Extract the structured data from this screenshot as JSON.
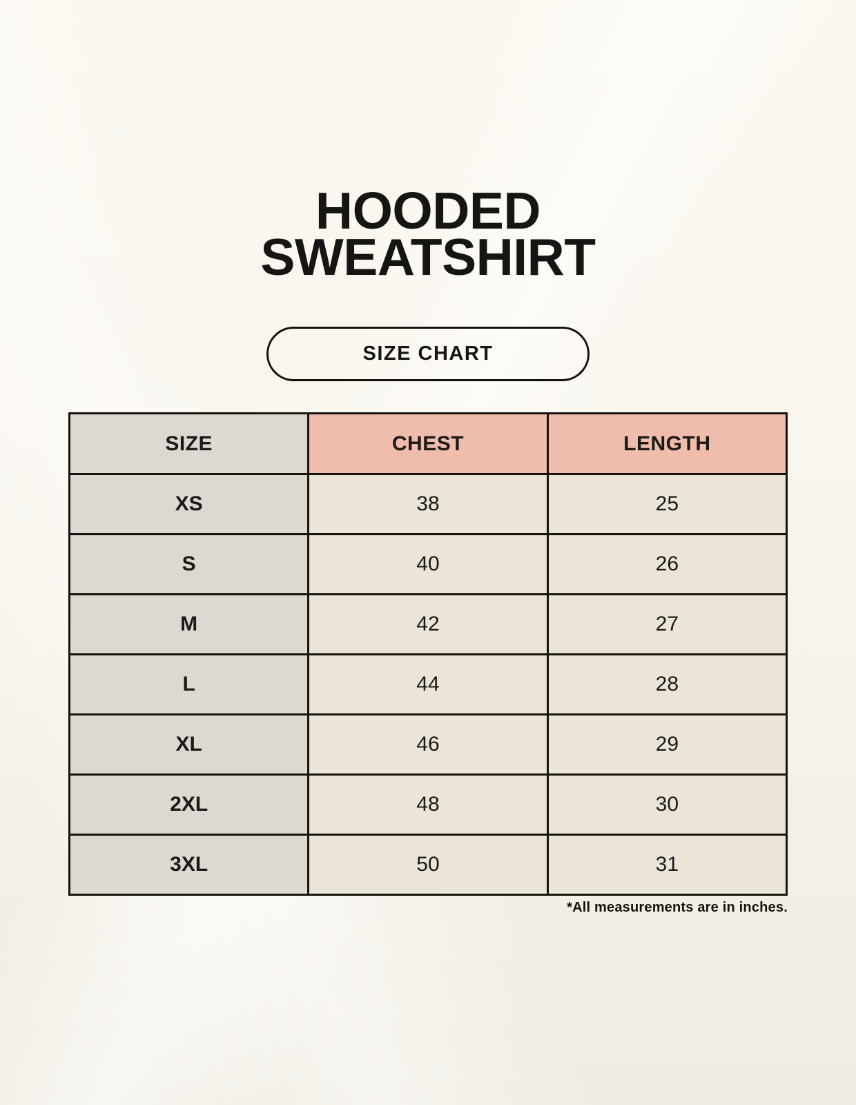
{
  "poster": {
    "title_line1": "HOODED",
    "title_line2": "SWEATSHIRT",
    "badge_label": "SIZE CHART",
    "footnote": "*All measurements are in inches."
  },
  "colors": {
    "background": "#f9f5ed",
    "header_fill": "#f0bcab",
    "size_col_fill": "#ded8d3",
    "cell_fill": "#eae4d9",
    "border": "#17130e",
    "text": "#1b1815"
  },
  "chart_data": {
    "type": "table",
    "title": "Hooded Sweatshirt Size Chart",
    "columns": [
      "SIZE",
      "CHEST",
      "LENGTH"
    ],
    "rows": [
      [
        "XS",
        38,
        25
      ],
      [
        "S",
        40,
        26
      ],
      [
        "M",
        42,
        27
      ],
      [
        "L",
        44,
        28
      ],
      [
        "XL",
        46,
        29
      ],
      [
        "2XL",
        48,
        30
      ],
      [
        "3XL",
        50,
        31
      ]
    ],
    "units": "inches"
  }
}
